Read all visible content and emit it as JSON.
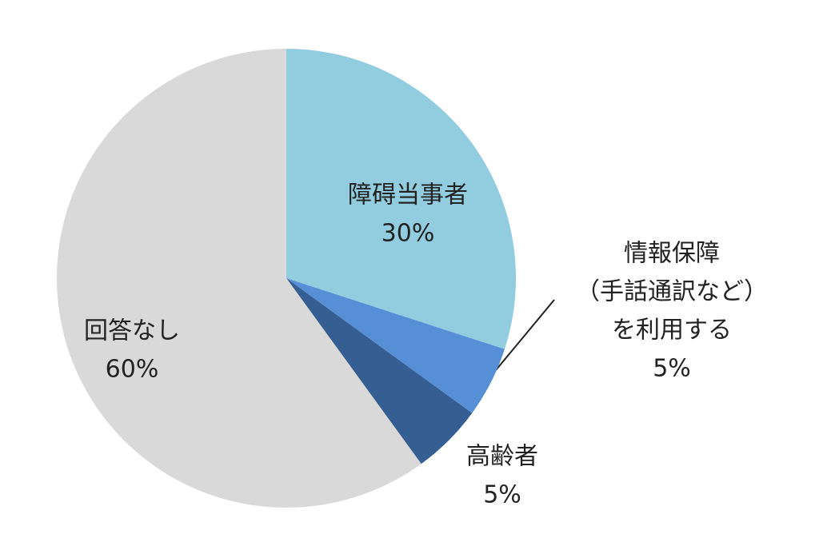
{
  "chart_data": {
    "type": "pie",
    "categories": [
      "障碍当事者",
      [
        "情報保障",
        "（手話通訳など）",
        "を利用する"
      ],
      "高齢者",
      "回答なし"
    ],
    "values": [
      30,
      5,
      5,
      60
    ],
    "value_labels": [
      "30%",
      "5%",
      "5%",
      "60%"
    ],
    "colors": [
      "#92cddf",
      "#568fd6",
      "#355f93",
      "#d9d9d9"
    ]
  }
}
